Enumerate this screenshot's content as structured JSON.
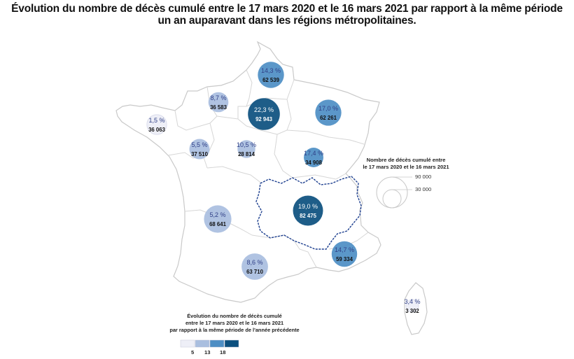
{
  "title": {
    "line1": "Évolution du nombre de décès cumulé entre le 17 mars 2020 et le 16 mars 2021 par rapport à la même période",
    "line2": "un an auparavant dans les régions métropolitaines."
  },
  "regions": [
    {
      "id": "hauts-de-france",
      "pct": "14,3 %",
      "deaths": "62 539",
      "pct_value": 14.3,
      "deaths_value": 62539
    },
    {
      "id": "normandie",
      "pct": "8,7 %",
      "deaths": "36 583",
      "pct_value": 8.7,
      "deaths_value": 36583
    },
    {
      "id": "ile-de-france",
      "pct": "22,3 %",
      "deaths": "92 943",
      "pct_value": 22.3,
      "deaths_value": 92943
    },
    {
      "id": "grand-est",
      "pct": "17,0 %",
      "deaths": "62 261",
      "pct_value": 17.0,
      "deaths_value": 62261
    },
    {
      "id": "bretagne",
      "pct": "1,5 %",
      "deaths": "36 063",
      "pct_value": 1.5,
      "deaths_value": 36063
    },
    {
      "id": "pays-de-la-loire",
      "pct": "5,5 %",
      "deaths": "37 510",
      "pct_value": 5.5,
      "deaths_value": 37510
    },
    {
      "id": "centre-val-de-loire",
      "pct": "10,5 %",
      "deaths": "28 814",
      "pct_value": 10.5,
      "deaths_value": 28814
    },
    {
      "id": "bourgogne-franche-comte",
      "pct": "17,4 %",
      "deaths": "34 908",
      "pct_value": 17.4,
      "deaths_value": 34908
    },
    {
      "id": "auvergne-rhone-alpes",
      "pct": "19,0 %",
      "deaths": "82 475",
      "pct_value": 19.0,
      "deaths_value": 82475
    },
    {
      "id": "nouvelle-aquitaine",
      "pct": "5,2 %",
      "deaths": "68 641",
      "pct_value": 5.2,
      "deaths_value": 68641
    },
    {
      "id": "occitanie",
      "pct": "8,6 %",
      "deaths": "63 710",
      "pct_value": 8.6,
      "deaths_value": 63710
    },
    {
      "id": "provence-alpes-cote-d-azur",
      "pct": "14,7 %",
      "deaths": "59 334",
      "pct_value": 14.7,
      "deaths_value": 59334
    },
    {
      "id": "corse",
      "pct": "3,4 %",
      "deaths": "3 302",
      "pct_value": 3.4,
      "deaths_value": 3302
    }
  ],
  "size_legend": {
    "title_line1": "Nombre de décès cumulé entre",
    "title_line2": "le 17 mars 2020 et le 16 mars 2021",
    "large": "90 000",
    "small": "30 000"
  },
  "color_legend": {
    "title_line1": "Évolution du nombre de décès cumulé",
    "title_line2": "entre le 17 mars 2020 et le 16 mars 2021",
    "title_line3": "par rapport à la même période de l'année précédente",
    "breaks": [
      "5",
      "13",
      "18"
    ],
    "colors": [
      "#eeeff7",
      "#a9bedf",
      "#4d8ec4",
      "#0b4f7e"
    ]
  },
  "colors": {
    "land": "#ffffff",
    "border": "#c9c9c9",
    "highlight_border": "#1d3f8f",
    "label_dark": "#2f3f86",
    "label_light": "#ffffff"
  }
}
